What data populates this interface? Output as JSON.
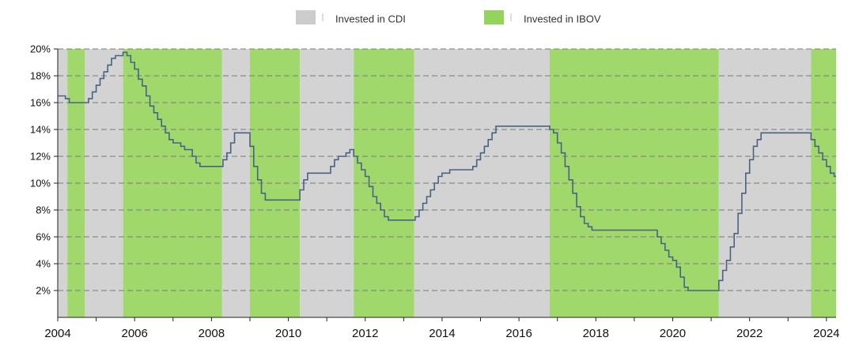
{
  "chart_data": {
    "type": "line",
    "colors": {
      "cdi_band": "#d3d3d3",
      "ibov_band": "#a1d86c",
      "rate_line": "#4a6282",
      "grid": "#7a7a7a",
      "axis": "#222222"
    },
    "legend": {
      "placement": "top-center",
      "items": [
        {
          "label": "Invested in CDI",
          "color": "#cccccc"
        },
        {
          "label": "Invested in IBOV",
          "color": "#94d45a"
        }
      ]
    },
    "x_ticks": [
      "2004",
      "2006",
      "2008",
      "2010",
      "2012",
      "2014",
      "2016",
      "2018",
      "2020",
      "2022",
      "2024"
    ],
    "y_ticks": [
      "2%",
      "4%",
      "6%",
      "8%",
      "10%",
      "12%",
      "14%",
      "16%",
      "18%",
      "20%"
    ],
    "xlim": [
      2004.0,
      2024.25
    ],
    "ylim": [
      0,
      20
    ],
    "grid": true,
    "regimes": [
      {
        "name": "Invested in CDI",
        "start": 2004.0,
        "end": 2004.25
      },
      {
        "name": "Invested in IBOV",
        "start": 2004.25,
        "end": 2004.7
      },
      {
        "name": "Invested in CDI",
        "start": 2004.7,
        "end": 2005.7
      },
      {
        "name": "Invested in IBOV",
        "start": 2005.7,
        "end": 2008.27
      },
      {
        "name": "Invested in CDI",
        "start": 2008.27,
        "end": 2009.0
      },
      {
        "name": "Invested in IBOV",
        "start": 2009.0,
        "end": 2010.3
      },
      {
        "name": "Invested in CDI",
        "start": 2010.3,
        "end": 2011.7
      },
      {
        "name": "Invested in IBOV",
        "start": 2011.7,
        "end": 2013.27
      },
      {
        "name": "Invested in CDI",
        "start": 2013.27,
        "end": 2016.8
      },
      {
        "name": "Invested in IBOV",
        "start": 2016.8,
        "end": 2021.2
      },
      {
        "name": "Invested in CDI",
        "start": 2021.2,
        "end": 2023.6
      },
      {
        "name": "Invested in IBOV",
        "start": 2023.6,
        "end": 2024.25
      }
    ],
    "series": [
      {
        "x": [
          2004.0,
          2004.2,
          2004.3,
          2004.7,
          2004.8,
          2004.9,
          2005.0,
          2005.1,
          2005.2,
          2005.3,
          2005.4,
          2005.5,
          2005.7,
          2005.8,
          2005.9,
          2006.0,
          2006.1,
          2006.2,
          2006.3,
          2006.4,
          2006.5,
          2006.6,
          2006.7,
          2006.8,
          2006.9,
          2007.0,
          2007.2,
          2007.3,
          2007.5,
          2007.6,
          2007.7,
          2007.8,
          2007.9,
          2008.3,
          2008.4,
          2008.5,
          2008.6,
          2008.7,
          2009.0,
          2009.1,
          2009.2,
          2009.3,
          2009.4,
          2009.5,
          2010.3,
          2010.4,
          2010.5,
          2010.6,
          2011.1,
          2011.2,
          2011.3,
          2011.5,
          2011.6,
          2011.7,
          2011.8,
          2011.9,
          2012.0,
          2012.1,
          2012.2,
          2012.3,
          2012.4,
          2012.5,
          2012.6,
          2012.7,
          2012.8,
          2013.3,
          2013.4,
          2013.5,
          2013.6,
          2013.7,
          2013.8,
          2013.9,
          2014.0,
          2014.2,
          2014.3,
          2014.8,
          2014.9,
          2015.0,
          2015.1,
          2015.2,
          2015.3,
          2015.4,
          2015.5,
          2015.6,
          2016.8,
          2016.9,
          2017.0,
          2017.1,
          2017.2,
          2017.3,
          2017.4,
          2017.5,
          2017.6,
          2017.7,
          2017.8,
          2017.9,
          2018.2,
          2019.6,
          2019.7,
          2019.8,
          2019.9,
          2020.0,
          2020.1,
          2020.2,
          2020.3,
          2020.4,
          2020.5,
          2020.6,
          2020.7,
          2021.2,
          2021.3,
          2021.4,
          2021.5,
          2021.6,
          2021.7,
          2021.8,
          2021.9,
          2022.0,
          2022.1,
          2022.2,
          2022.3,
          2022.4,
          2022.5,
          2022.7,
          2023.6,
          2023.7,
          2023.8,
          2023.9,
          2024.0,
          2024.1,
          2024.2,
          2024.25
        ],
        "y": [
          16.5,
          16.3,
          16.0,
          16.0,
          16.3,
          16.8,
          17.3,
          17.8,
          18.3,
          18.8,
          19.3,
          19.5,
          19.75,
          19.5,
          19.0,
          18.5,
          17.75,
          17.25,
          16.5,
          15.75,
          15.25,
          14.75,
          14.25,
          13.75,
          13.25,
          13.0,
          12.75,
          12.5,
          12.0,
          11.5,
          11.25,
          11.25,
          11.25,
          11.75,
          12.25,
          13.0,
          13.75,
          13.75,
          12.75,
          11.25,
          10.25,
          9.25,
          8.75,
          8.75,
          9.5,
          10.25,
          10.75,
          10.75,
          11.25,
          11.75,
          12.0,
          12.25,
          12.5,
          12.0,
          11.5,
          11.0,
          10.5,
          9.75,
          9.0,
          8.5,
          8.0,
          7.5,
          7.25,
          7.25,
          7.25,
          7.5,
          8.0,
          8.5,
          9.0,
          9.5,
          10.0,
          10.5,
          10.75,
          11.0,
          11.0,
          11.25,
          11.75,
          12.25,
          12.75,
          13.25,
          13.75,
          14.25,
          14.25,
          14.25,
          14.0,
          13.75,
          13.0,
          12.25,
          11.25,
          10.25,
          9.25,
          8.25,
          7.5,
          7.0,
          6.75,
          6.5,
          6.5,
          6.0,
          5.5,
          5.0,
          4.5,
          4.25,
          3.75,
          3.0,
          2.25,
          2.0,
          2.0,
          2.0,
          2.0,
          2.75,
          3.5,
          4.25,
          5.25,
          6.25,
          7.75,
          9.25,
          10.75,
          11.75,
          12.75,
          13.25,
          13.75,
          13.75,
          13.75,
          13.75,
          13.25,
          12.75,
          12.25,
          11.75,
          11.25,
          10.75,
          10.5,
          10.5
        ]
      }
    ]
  }
}
